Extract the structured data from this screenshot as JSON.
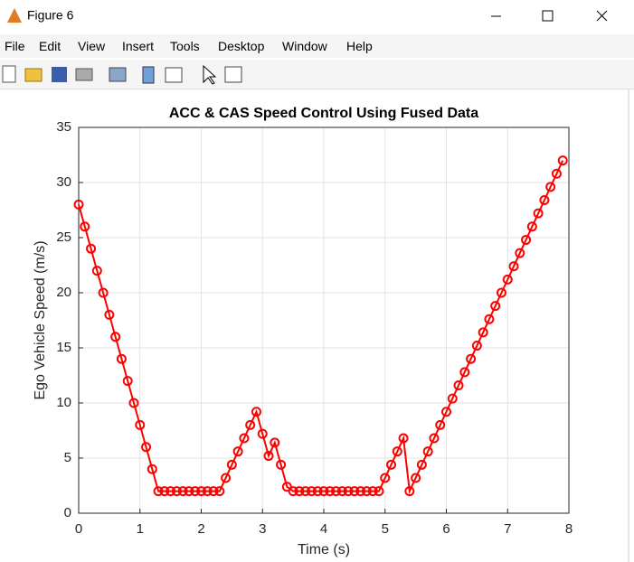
{
  "window": {
    "title": "Figure 6"
  },
  "menu": [
    "File",
    "Edit",
    "View",
    "Insert",
    "Tools",
    "Desktop",
    "Window",
    "Help"
  ],
  "chart_data": {
    "type": "line",
    "title": "ACC & CAS Speed Control Using Fused Data",
    "xlabel": "Time (s)",
    "ylabel": "Ego Vehicle Speed (m/s)",
    "x": [
      0,
      0.1,
      0.2,
      0.3,
      0.4,
      0.5,
      0.6,
      0.7,
      0.8,
      0.9,
      1,
      1.1,
      1.2,
      1.3,
      1.4,
      1.5,
      1.6,
      1.7,
      1.8,
      1.9,
      2,
      2.1,
      2.2,
      2.3,
      2.4,
      2.5,
      2.6,
      2.7,
      2.8,
      2.9,
      3,
      3.1,
      3.2,
      3.3,
      3.4,
      3.5,
      3.6,
      3.7,
      3.8,
      3.9,
      4,
      4.1,
      4.2,
      4.3,
      4.4,
      4.5,
      4.6,
      4.7,
      4.8,
      4.9,
      5,
      5.1,
      5.2,
      5.3,
      5.4,
      5.5,
      5.6,
      5.7,
      5.8,
      5.9,
      6,
      6.1,
      6.2,
      6.3,
      6.4,
      6.5,
      6.6,
      6.7,
      6.8,
      6.9,
      7,
      7.1,
      7.2,
      7.3,
      7.4,
      7.5,
      7.6,
      7.7,
      7.8,
      7.9
    ],
    "series": [
      {
        "color": "#ff0000",
        "values": [
          28,
          26,
          24,
          22,
          20,
          18,
          16,
          14,
          12,
          10,
          8,
          6,
          4,
          2,
          2,
          2,
          2,
          2,
          2,
          2,
          2,
          2,
          2,
          2,
          3.2,
          4.4,
          5.6,
          6.8,
          8,
          9.2,
          7.2,
          5.2,
          6.4,
          4.4,
          2.4,
          2,
          2,
          2,
          2,
          2,
          2,
          2,
          2,
          2,
          2,
          2,
          2,
          2,
          2,
          2,
          3.2,
          4.4,
          5.6,
          6.8,
          2,
          3.2,
          4.4,
          5.6,
          6.8,
          8,
          9.2,
          10.4,
          11.6,
          12.8,
          14,
          15.2,
          16.4,
          17.6,
          18.8,
          20,
          21.2,
          22.4,
          23.6,
          24.8,
          26,
          27.2,
          28.4,
          29.6,
          30.8,
          32
        ]
      }
    ],
    "xlim": [
      0,
      8
    ],
    "ylim": [
      0,
      35
    ],
    "xticks": [
      0,
      1,
      2,
      3,
      4,
      5,
      6,
      7,
      8
    ],
    "yticks": [
      0,
      5,
      10,
      15,
      20,
      25,
      30,
      35
    ],
    "grid": true
  }
}
